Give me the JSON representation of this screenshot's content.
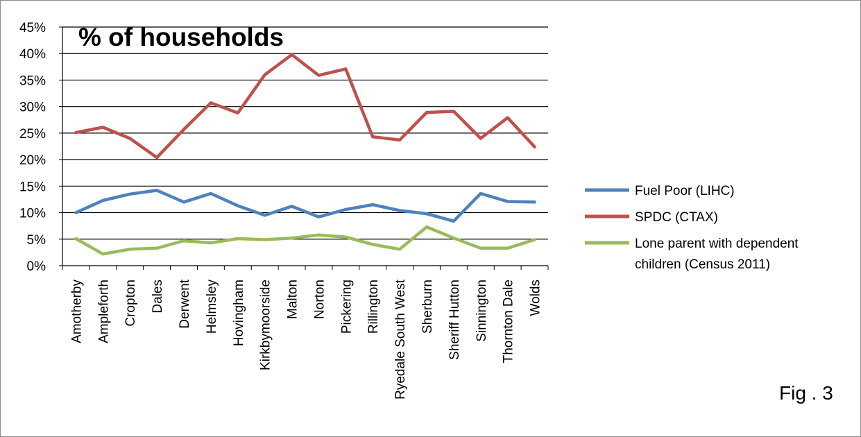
{
  "chart_data": {
    "type": "line",
    "title": "% of households",
    "xlabel": "",
    "ylabel": "",
    "ylim": [
      0,
      45
    ],
    "yticks": [
      "0%",
      "5%",
      "10%",
      "15%",
      "20%",
      "25%",
      "30%",
      "35%",
      "40%",
      "45%"
    ],
    "grid": true,
    "legend_position": "right",
    "categories": [
      "Amotherby",
      "Ampleforth",
      "Cropton",
      "Dales",
      "Derwent",
      "Helmsley",
      "Hovingham",
      "Kirkbymoorside",
      "Malton",
      "Norton",
      "Pickering",
      "Rillington",
      "Ryedale South West",
      "Sherburn",
      "Sheriff Hutton",
      "Sinnington",
      "Thornton Dale",
      "Wolds"
    ],
    "series": [
      {
        "name": "Fuel Poor (LIHC)",
        "color": "#4f81bd",
        "values": [
          10.0,
          12.3,
          13.5,
          14.2,
          12.0,
          13.6,
          11.3,
          9.5,
          11.2,
          9.2,
          10.6,
          11.5,
          10.4,
          9.8,
          8.4,
          13.6,
          12.1,
          12.0
        ]
      },
      {
        "name": "SPDC (CTAX)",
        "color": "#c0504d",
        "values": [
          25.1,
          26.1,
          24.0,
          20.4,
          25.7,
          30.7,
          28.8,
          36.0,
          39.8,
          35.9,
          37.1,
          24.3,
          23.7,
          28.9,
          29.1,
          24.0,
          27.9,
          22.4
        ]
      },
      {
        "name": "Lone parent with dependent children (Census 2011)",
        "color": "#9bbb59",
        "values": [
          5.1,
          2.2,
          3.1,
          3.3,
          4.7,
          4.3,
          5.1,
          4.9,
          5.2,
          5.8,
          5.4,
          4.0,
          3.1,
          7.3,
          5.2,
          3.3,
          3.3,
          4.9
        ]
      }
    ],
    "annotation": "Fig . 3"
  }
}
